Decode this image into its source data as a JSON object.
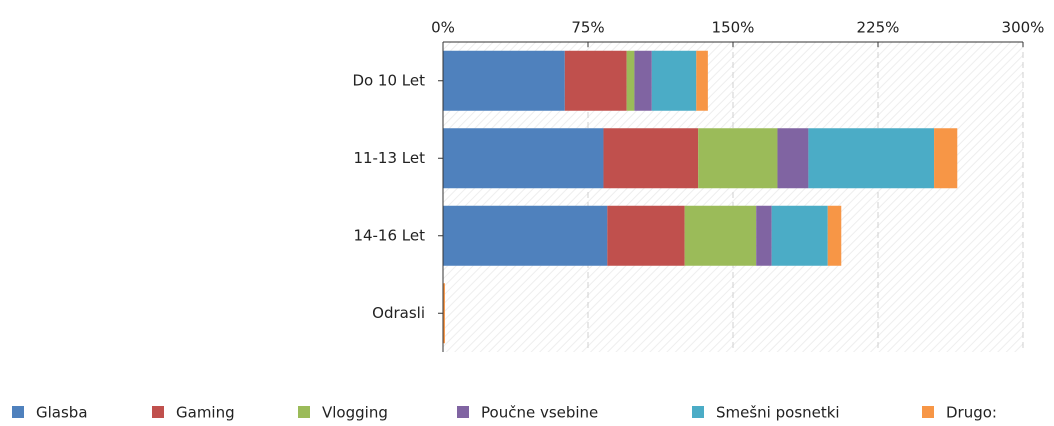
{
  "chart_data": {
    "type": "stacked_barh",
    "categories": [
      "Do 10 Let",
      "11-13 Let",
      "14-16 Let",
      "Odrasli"
    ],
    "series": [
      {
        "name": "Glasba",
        "color": "#4f81bd",
        "values": [
          63,
          83,
          85,
          0
        ]
      },
      {
        "name": "Gaming",
        "color": "#c0504d",
        "values": [
          32,
          49,
          40,
          0
        ]
      },
      {
        "name": "Vlogging",
        "color": "#9bbb59",
        "values": [
          4,
          41,
          37,
          0
        ]
      },
      {
        "name": "Poučne vsebine",
        "color": "#8064a2",
        "values": [
          9,
          16,
          8,
          0
        ]
      },
      {
        "name": "Smešni posnetki",
        "color": "#4bacc6",
        "values": [
          23,
          65,
          29,
          0
        ]
      },
      {
        "name": "Drugo:",
        "color": "#f79646",
        "values": [
          6,
          12,
          7,
          1
        ]
      }
    ],
    "xlim": [
      0,
      300
    ],
    "xticks": [
      {
        "value": 0,
        "label": "0%"
      },
      {
        "value": 75,
        "label": "75%"
      },
      {
        "value": 150,
        "label": "150%"
      },
      {
        "value": 225,
        "label": "225%"
      },
      {
        "value": 300,
        "label": "300%"
      }
    ],
    "grid": true,
    "legend": "bottom"
  }
}
